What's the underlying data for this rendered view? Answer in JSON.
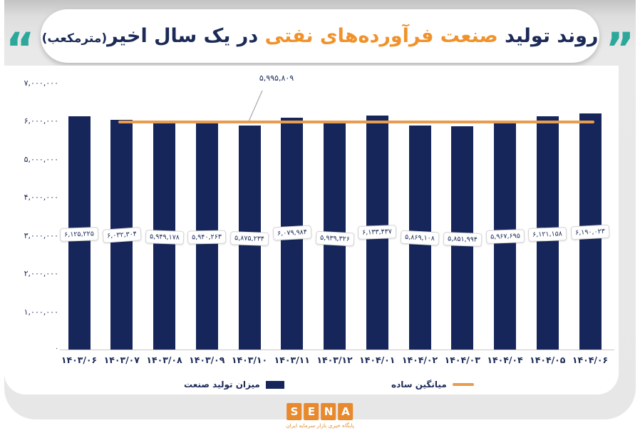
{
  "header": {
    "quote_open": "“",
    "quote_close": "”",
    "title_part1": "روند تولید",
    "title_part2": "صنعت فرآورده‌های نفتی",
    "title_part3": "در یک سال اخیر",
    "title_unit": "(مترمکعب)"
  },
  "colors": {
    "navy": "#16265A",
    "orange_title": "#F0922B",
    "orange_line": "#E89C4E",
    "teal_quotes": "#2BA89B",
    "text": "#1B2A57",
    "logo_orange": "#E8892D"
  },
  "chart_data": {
    "type": "bar",
    "title": "روند تولید صنعت فرآورده‌های نفتی در یک سال اخیر (مترمکعب)",
    "xlabel": "",
    "ylabel": "",
    "unit": "مترمکعب",
    "grid": false,
    "legend_position": "bottom",
    "ylim": [
      0,
      7000000
    ],
    "yticks": {
      "values": [
        0,
        1000000,
        2000000,
        3000000,
        4000000,
        5000000,
        6000000,
        7000000
      ],
      "labels": [
        "۰",
        "۱,۰۰۰,۰۰۰",
        "۲,۰۰۰,۰۰۰",
        "۳,۰۰۰,۰۰۰",
        "۴,۰۰۰,۰۰۰",
        "۵,۰۰۰,۰۰۰",
        "۶,۰۰۰,۰۰۰",
        "۷,۰۰۰,۰۰۰"
      ]
    },
    "categories": [
      "۱۴۰۳/۰۶",
      "۱۴۰۳/۰۷",
      "۱۴۰۳/۰۸",
      "۱۴۰۳/۰۹",
      "۱۴۰۳/۱۰",
      "۱۴۰۳/۱۱",
      "۱۴۰۳/۱۲",
      "۱۴۰۴/۰۱",
      "۱۴۰۴/۰۲",
      "۱۴۰۴/۰۳",
      "۱۴۰۴/۰۴",
      "۱۴۰۴/۰۵",
      "۱۴۰۴/۰۶"
    ],
    "series": [
      {
        "name": "میزان تولید صنعت",
        "type": "bar",
        "color": "#16265A",
        "values": [
          6125225,
          6032304,
          5949178,
          5940263,
          5875234,
          6079984,
          5939326,
          6133437,
          5869108,
          5851994,
          5967695,
          6121158,
          6190023
        ],
        "value_labels": [
          "۶,۱۲۵,۲۲۵",
          "۶,۰۳۲,۳۰۴",
          "۵,۹۴۹,۱۷۸",
          "۵,۹۴۰,۲۶۳",
          "۵,۸۷۵,۲۳۴",
          "۶,۰۷۹,۹۸۴",
          "۵,۹۳۹,۳۲۶",
          "۶,۱۳۳,۴۳۷",
          "۵,۸۶۹,۱۰۸",
          "۵,۸۵۱,۹۹۴",
          "۵,۹۶۷,۶۹۵",
          "۶,۱۲۱,۱۵۸",
          "۶,۱۹۰,۰۲۳"
        ]
      }
    ],
    "average_line": {
      "name": "میانگین ساده",
      "color": "#E89C4E",
      "value": 5995809,
      "label": "۵,۹۹۵,۸۰۹",
      "span_category_start": "۱۴۰۳/۰۷",
      "span_category_end": "۱۴۰۴/۰۶"
    }
  },
  "legend": {
    "bars_label": "میزان تولید صنعت",
    "line_label": "میانگین ساده"
  },
  "footer": {
    "logo_letters": [
      "S",
      "E",
      "N",
      "A"
    ],
    "tagline": "پایگاه خبری بازار سرمایه ایران"
  }
}
